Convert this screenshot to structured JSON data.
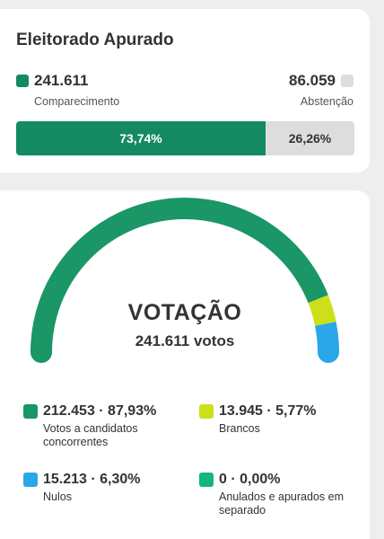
{
  "electorate": {
    "title": "Eleitorado Apurado",
    "turnout_value": "241.611",
    "turnout_label": "Comparecimento",
    "abstention_value": "86.059",
    "abstention_label": "Abstenção",
    "turnout_percent_label": "73,74%",
    "abstention_percent_label": "26,26%",
    "turnout_fraction": 0.7374,
    "colors": {
      "turnout": "#138a62",
      "abstention": "#dddddd"
    }
  },
  "vote": {
    "title": "VOTAÇÃO",
    "total": "241.611 votos",
    "segments": [
      {
        "value": "212.453 · 87,93%",
        "label": "Votos a candidatos concorrentes",
        "fraction": 0.8793,
        "color": "#1a9667"
      },
      {
        "value": "13.945 · 5,77%",
        "label": "Brancos",
        "fraction": 0.0577,
        "color": "#cbe019"
      },
      {
        "value": "15.213 · 6,30%",
        "label": "Nulos",
        "fraction": 0.063,
        "color": "#2aa7e8"
      },
      {
        "value": "0 · 0,00%",
        "label": "Anulados e apurados em separado",
        "fraction": 0.0,
        "color": "#14b67c"
      }
    ]
  }
}
